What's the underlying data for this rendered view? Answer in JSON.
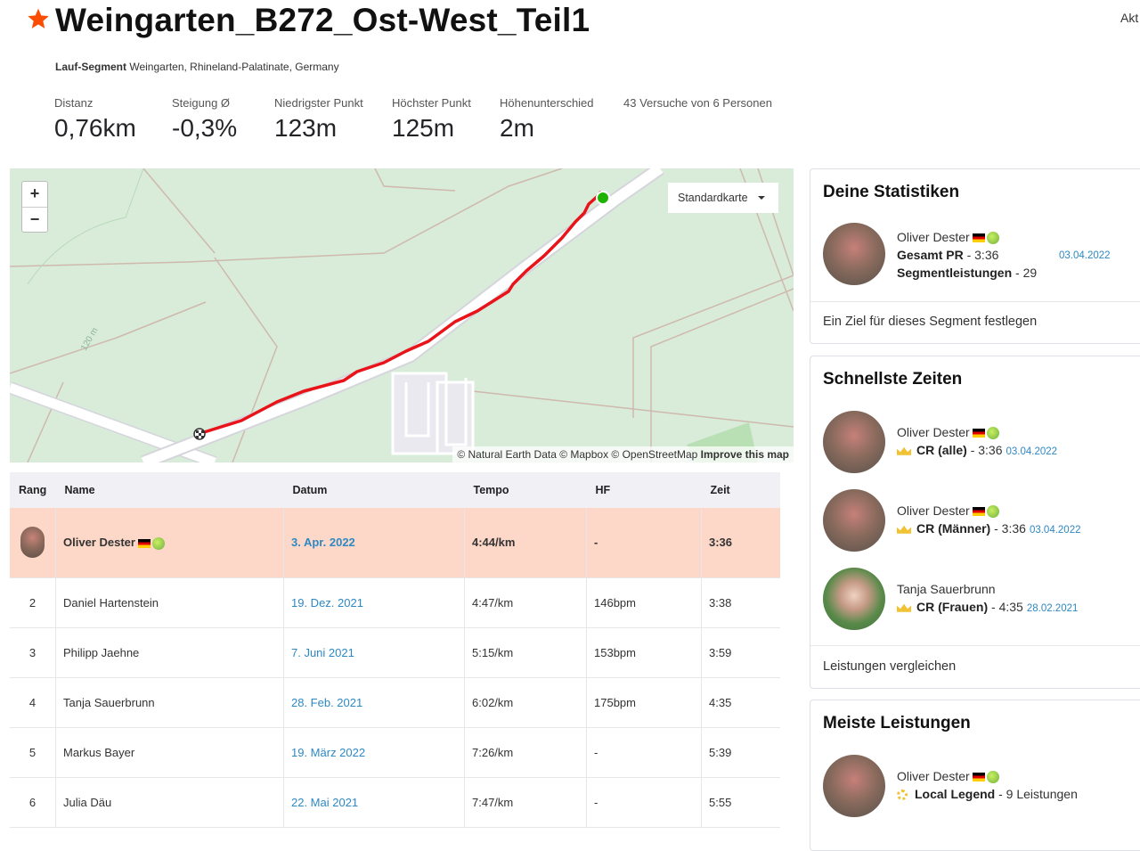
{
  "header": {
    "title": "Weingarten_B272_Ost-West_Teil1",
    "right_label": "Akt",
    "segment_type": "Lauf-Segment",
    "location": "Weingarten, Rhineland-Palatinate, Germany",
    "stats": [
      {
        "label": "Distanz",
        "value": "0,76km"
      },
      {
        "label": "Steigung Ø",
        "value": "-0,3%"
      },
      {
        "label": "Niedrigster Punkt",
        "value": "123m"
      },
      {
        "label": "Höchster Punkt",
        "value": "125m"
      },
      {
        "label": "Höhenunterschied",
        "value": "2m"
      }
    ],
    "attempts": "43 Versuche von 6 Personen"
  },
  "map": {
    "zoom_in": "+",
    "zoom_out": "−",
    "style_select": "Standardkarte",
    "contour_label": "120 m",
    "attribution": "© Natural Earth Data © Mapbox © OpenStreetMap",
    "improve_link": "Improve this map",
    "colors": {
      "route": "#e8141a",
      "start": "#1db300",
      "land": "#d8ecd9"
    }
  },
  "leaderboard": {
    "columns": [
      "Rang",
      "Name",
      "Datum",
      "Tempo",
      "HF",
      "Zeit"
    ],
    "rows": [
      {
        "rank": "",
        "name": "Oliver Dester",
        "date": "3. Apr. 2022",
        "pace": "4:44/km",
        "hr": "-",
        "time": "3:36"
      },
      {
        "rank": "2",
        "name": "Daniel Hartenstein",
        "date": "19. Dez. 2021",
        "pace": "4:47/km",
        "hr": "146bpm",
        "time": "3:38"
      },
      {
        "rank": "3",
        "name": "Philipp Jaehne",
        "date": "7. Juni 2021",
        "pace": "5:15/km",
        "hr": "153bpm",
        "time": "3:59"
      },
      {
        "rank": "4",
        "name": "Tanja Sauerbrunn",
        "date": "28. Feb. 2021",
        "pace": "6:02/km",
        "hr": "175bpm",
        "time": "4:35"
      },
      {
        "rank": "5",
        "name": "Markus Bayer",
        "date": "19. März 2022",
        "pace": "7:26/km",
        "hr": "-",
        "time": "5:39"
      },
      {
        "rank": "6",
        "name": "Julia Däu",
        "date": "22. Mai 2021",
        "pace": "7:47/km",
        "hr": "-",
        "time": "5:55"
      }
    ]
  },
  "my_stats": {
    "title": "Deine Statistiken",
    "name": "Oliver Dester",
    "pr_label": "Gesamt PR",
    "pr_value": "- 3:36",
    "pr_date": "03.04.2022",
    "efforts_label": "Segmentleistungen",
    "efforts_value": "- 29",
    "footer": "Ein Ziel für dieses Segment festlegen"
  },
  "fastest": {
    "title": "Schnellste Zeiten",
    "entries": [
      {
        "name": "Oliver Dester",
        "label": "CR (alle)",
        "value": "- 3:36",
        "date": "03.04.2022"
      },
      {
        "name": "Oliver Dester",
        "label": "CR (Männer)",
        "value": "- 3:36",
        "date": "03.04.2022"
      },
      {
        "name": "Tanja Sauerbrunn",
        "label": "CR (Frauen)",
        "value": "- 4:35",
        "date": "28.02.2021"
      }
    ],
    "footer": "Leistungen vergleichen"
  },
  "most_efforts": {
    "title": "Meiste Leistungen",
    "name": "Oliver Dester",
    "label": "Local Legend",
    "value": "- 9 Leistungen"
  }
}
